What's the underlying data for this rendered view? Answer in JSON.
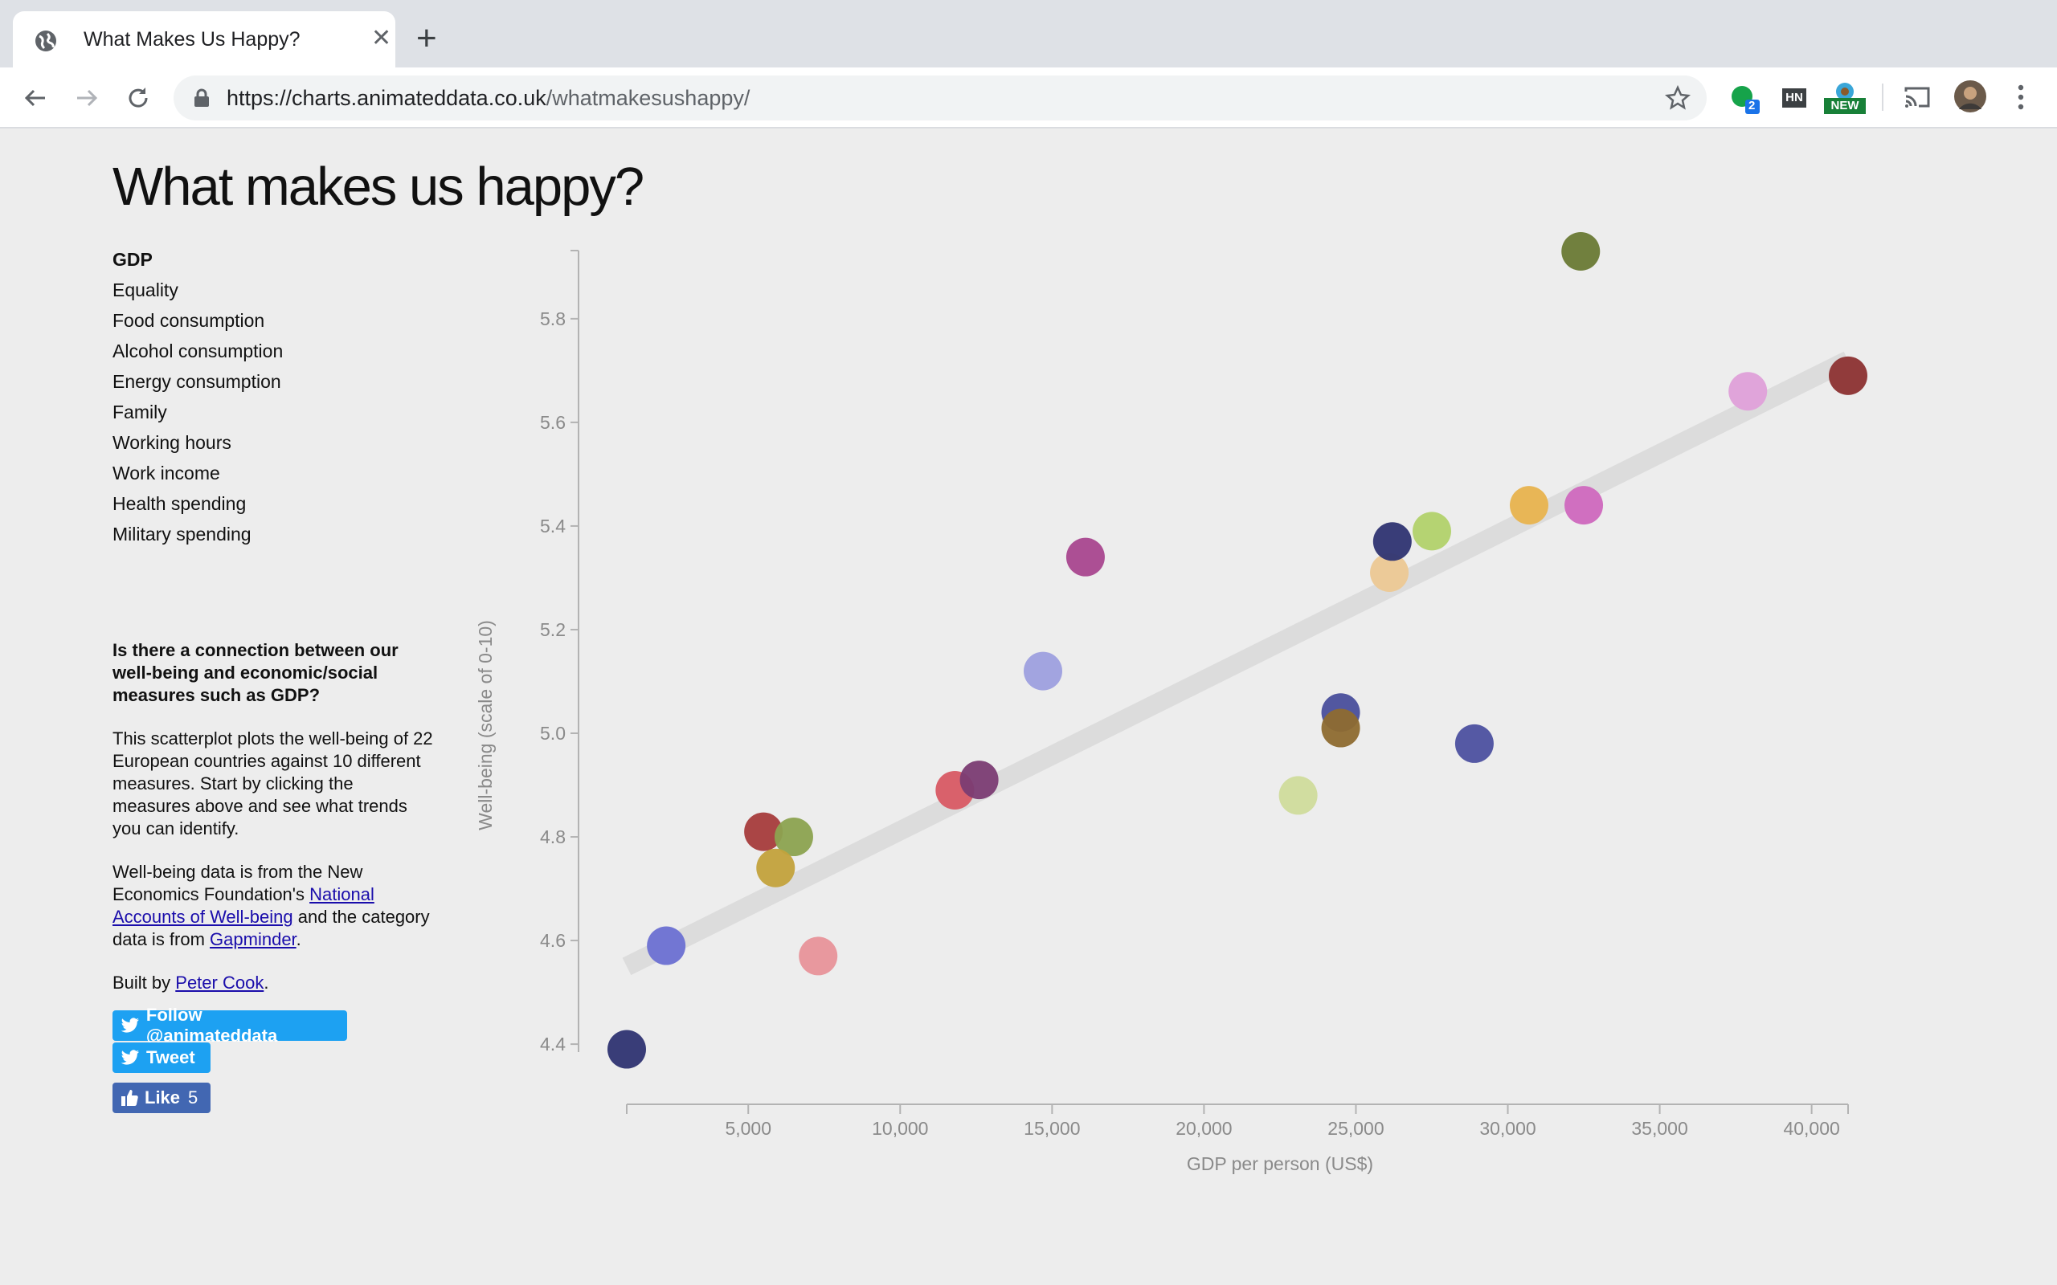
{
  "browser": {
    "tab_title": "What Makes Us Happy?",
    "url_host": "https://charts.animateddata.co.uk",
    "url_path": "/whatmakesushappy/",
    "extensions": [
      {
        "name": "green-dot-extension",
        "badge": "2"
      },
      {
        "name": "hn-extension",
        "label": "HN"
      },
      {
        "name": "globe-extension",
        "badge": "NEW"
      }
    ]
  },
  "page": {
    "title": "What makes us happy?",
    "measures": [
      "GDP",
      "Equality",
      "Food consumption",
      "Alcohol consumption",
      "Energy consumption",
      "Family",
      "Working hours",
      "Work income",
      "Health spending",
      "Military spending"
    ],
    "active_measure": "GDP",
    "info": {
      "heading": "Is there a connection between our well-being and economic/social measures such as GDP?",
      "p1": "This scatterplot plots the well-being of 22 European countries against 10 different measures. Start by clicking the measures above and see what trends you can identify.",
      "p2_a": "Well-being data is from the New Economics Foundation's ",
      "p2_link1": "National Accounts of Well-being",
      "p2_b": " and the category data is from ",
      "p2_link2": "Gapminder",
      "p2_c": ".",
      "p3_a": "Built by ",
      "p3_link": "Peter Cook",
      "p3_b": "."
    },
    "social": {
      "follow": "Follow @animateddata",
      "tweet": "Tweet",
      "like": "Like",
      "like_count": "5"
    }
  },
  "chart_data": {
    "type": "scatter",
    "xlabel": "GDP per person (US$)",
    "ylabel": "Well-being (scale of 0-10)",
    "xlim": [
      1000,
      41200
    ],
    "ylim": [
      4.38,
      5.93
    ],
    "x_ticks": [
      5000,
      10000,
      15000,
      20000,
      25000,
      30000,
      35000,
      40000
    ],
    "x_tick_labels": [
      "5,000",
      "10,000",
      "15,000",
      "20,000",
      "25,000",
      "30,000",
      "35,000",
      "40,000"
    ],
    "y_ticks": [
      4.4,
      4.6,
      4.8,
      5.0,
      5.2,
      5.4,
      5.6,
      5.8
    ],
    "y_tick_labels": [
      "4.4",
      "4.6",
      "4.8",
      "5.0",
      "5.2",
      "5.4",
      "5.6",
      "5.8"
    ],
    "trend_line": {
      "x": [
        1000,
        41200
      ],
      "y": [
        4.55,
        5.72
      ]
    },
    "points": [
      {
        "x": 1000,
        "y": 4.39,
        "color": "#2f3472"
      },
      {
        "x": 2300,
        "y": 4.59,
        "color": "#6c70d2"
      },
      {
        "x": 5500,
        "y": 4.81,
        "color": "#a73c3c"
      },
      {
        "x": 6500,
        "y": 4.8,
        "color": "#8ca350"
      },
      {
        "x": 5900,
        "y": 4.74,
        "color": "#c3a23c"
      },
      {
        "x": 7300,
        "y": 4.57,
        "color": "#e8949a"
      },
      {
        "x": 11800,
        "y": 4.89,
        "color": "#d85a64"
      },
      {
        "x": 12600,
        "y": 4.91,
        "color": "#7b3c73"
      },
      {
        "x": 14700,
        "y": 5.12,
        "color": "#9ea0df"
      },
      {
        "x": 16100,
        "y": 5.34,
        "color": "#a9478f"
      },
      {
        "x": 23100,
        "y": 4.88,
        "color": "#d0dc9c"
      },
      {
        "x": 24500,
        "y": 5.04,
        "color": "#4a4f9c"
      },
      {
        "x": 24500,
        "y": 5.01,
        "color": "#8e6b30"
      },
      {
        "x": 26100,
        "y": 5.31,
        "color": "#ecc893"
      },
      {
        "x": 26200,
        "y": 5.37,
        "color": "#2f3472"
      },
      {
        "x": 27500,
        "y": 5.39,
        "color": "#b2d26c"
      },
      {
        "x": 28900,
        "y": 4.98,
        "color": "#4d51a0"
      },
      {
        "x": 30700,
        "y": 5.44,
        "color": "#e8b34e"
      },
      {
        "x": 32400,
        "y": 5.93,
        "color": "#6a7a35"
      },
      {
        "x": 32500,
        "y": 5.44,
        "color": "#cf68be"
      },
      {
        "x": 37900,
        "y": 5.66,
        "color": "#dfa0d9"
      },
      {
        "x": 41200,
        "y": 5.69,
        "color": "#8c3232"
      }
    ]
  }
}
